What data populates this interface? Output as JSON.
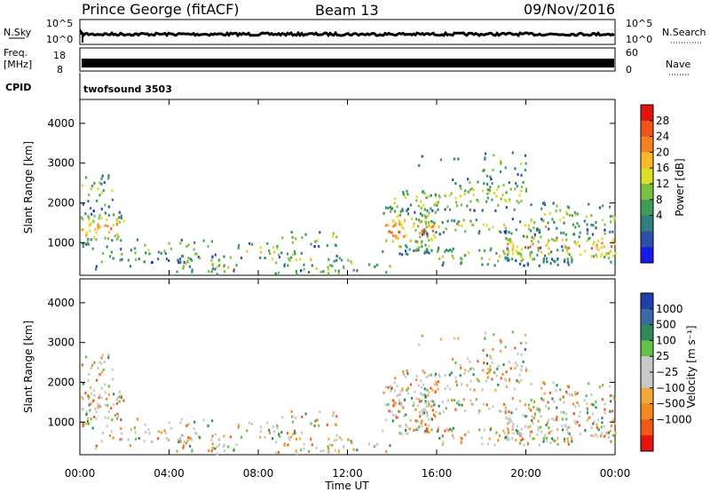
{
  "header": {
    "station": "Prince George (fitACF)",
    "beam": "Beam 13",
    "date": "09/Nov/2016"
  },
  "strips": {
    "nsky_label": "N.Sky",
    "nsky_top": "10^5",
    "nsky_bottom": "10^0",
    "nsearch_label": "N.Search",
    "nsearch_top": "10^5",
    "nsearch_bottom": "10^0",
    "freq_label_1": "Freq.",
    "freq_label_2": "[MHz]",
    "freq_top": "18",
    "freq_bottom": "8",
    "nave_label": "Nave",
    "nave_top": "60",
    "nave_bottom": "0",
    "cpid_label": "CPID",
    "cpid_value": "twofsound 3503"
  },
  "chart_data": [
    {
      "type": "heatmap",
      "name": "power",
      "ylabel": "Slant Range [km]",
      "xlabel": "",
      "yticks": [
        1000,
        2000,
        3000,
        4000
      ],
      "ylim": [
        180,
        4600
      ],
      "xlim_hours": [
        0,
        24
      ],
      "colorbar_label": "Power [dB]",
      "colorbar_ticks": [
        "28",
        "24",
        "20",
        "16",
        "12",
        "8",
        "4"
      ],
      "colorbar_colors": [
        "#e3120b",
        "#f0541a",
        "#f5821f",
        "#fbb925",
        "#d8e025",
        "#7bc043",
        "#3e9e58",
        "#2f7f7c",
        "#2c4fa8",
        "#1a1ae8"
      ]
    },
    {
      "type": "heatmap",
      "name": "velocity",
      "ylabel": "Slant Range [km]",
      "xlabel": "Time UT",
      "yticks": [
        1000,
        2000,
        3000,
        4000
      ],
      "ylim": [
        180,
        4600
      ],
      "xlim_hours": [
        0,
        24
      ],
      "xticks": [
        "00:00",
        "04:00",
        "08:00",
        "12:00",
        "16:00",
        "20:00",
        "00:00"
      ],
      "colorbar_label": "Velocity [m s⁻¹]",
      "colorbar_ticks": [
        "1000",
        "500",
        "100",
        "25",
        "−25",
        "−100",
        "−500",
        "−1000"
      ],
      "colorbar_colors": [
        "#2040a8",
        "#3a6aa8",
        "#2e8a5a",
        "#62c24a",
        "#c8c8c8",
        "#c8c8c8",
        "#f5a83a",
        "#f58a1f",
        "#f05a16",
        "#e8120e"
      ]
    }
  ]
}
